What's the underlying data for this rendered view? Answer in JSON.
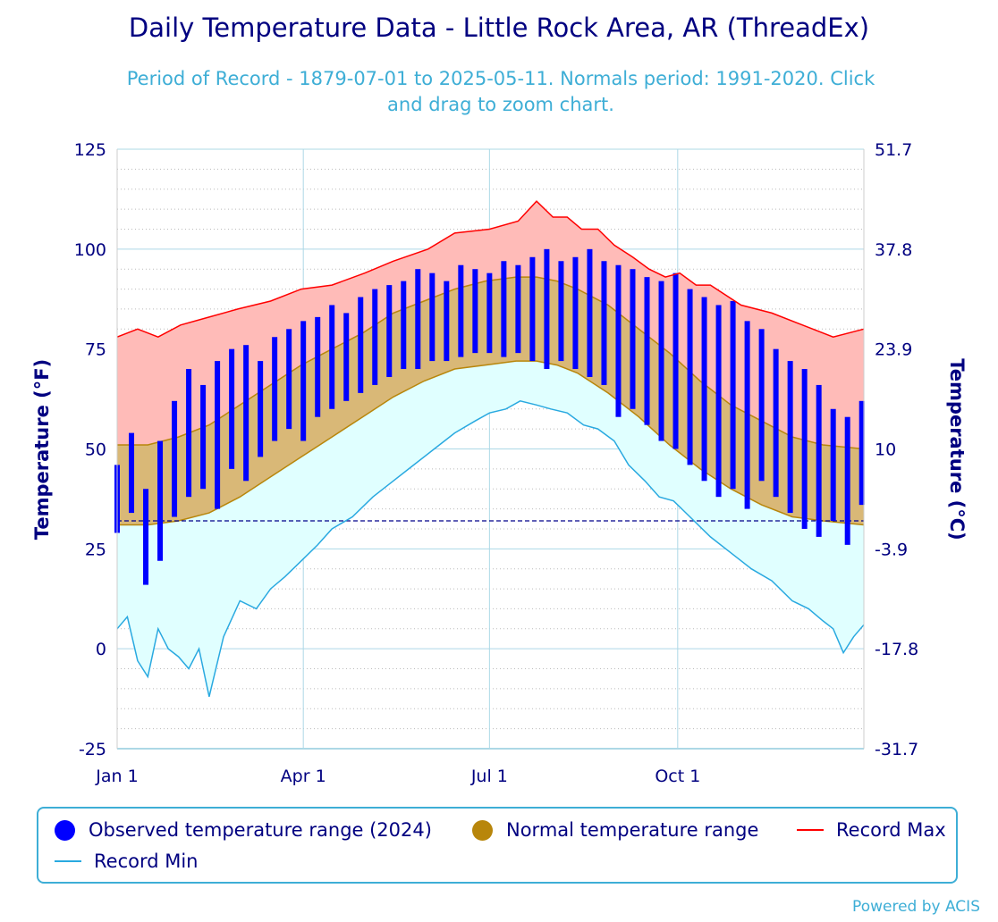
{
  "title": "Daily Temperature Data - Little Rock Area, AR (ThreadEx)",
  "subtitle_line1": "Period of Record - 1879-07-01 to 2025-05-11. Normals period: 1991-2020. Click",
  "subtitle_line2": "and drag to zoom chart.",
  "y_left_title": "Temperature (°F)",
  "y_right_title": "Temperature (°C)",
  "powered_by": "Powered by ACIS",
  "legend": {
    "observed": "Observed temperature range (2024)",
    "normal": "Normal temperature range",
    "record_max": "Record Max",
    "record_min": "Record Min"
  },
  "colors": {
    "observed": "#0000ff",
    "normal_fill": "#d9b877",
    "normal_line": "#b8860b",
    "normal_legend": "#b8860b",
    "record_max_line": "#ff0000",
    "record_max_fill": "#ffbbb8",
    "record_min_line": "#29a9e0",
    "record_min_fill": "#e0ffff",
    "axis_text": "#000080",
    "grid": "#add8e6",
    "freezing_line": "#00008b"
  },
  "chart_data": {
    "type": "area",
    "title": "Daily Temperature Data - Little Rock Area, AR (ThreadEx)",
    "xlabel": "",
    "ylabel": "Temperature (°F)",
    "ylabel_right": "Temperature (°C)",
    "ylim": [
      -25,
      125
    ],
    "y_ticks": [
      -25,
      0,
      25,
      50,
      75,
      100,
      125
    ],
    "y_right_ticks": [
      "-31.7",
      "-17.8",
      "-3.9",
      "10",
      "23.9",
      "37.8",
      "51.7"
    ],
    "x_ticks": [
      {
        "label": "Jan 1",
        "day": 0
      },
      {
        "label": "Apr 1",
        "day": 91
      },
      {
        "label": "Jul 1",
        "day": 182
      },
      {
        "label": "Oct 1",
        "day": 274
      }
    ],
    "x_range_days": [
      0,
      365
    ],
    "freezing_line_f": 32,
    "grid": true,
    "legend_position": "bottom",
    "record_max": {
      "days": [
        0,
        10,
        20,
        31,
        45,
        59,
        75,
        90,
        105,
        121,
        135,
        152,
        165,
        182,
        196,
        205,
        213,
        220,
        227,
        235,
        243,
        252,
        260,
        268,
        275,
        283,
        290,
        305,
        320,
        335,
        350,
        365
      ],
      "values": [
        78,
        80,
        78,
        81,
        83,
        85,
        87,
        90,
        91,
        94,
        97,
        100,
        104,
        105,
        107,
        112,
        108,
        108,
        105,
        105,
        101,
        98,
        95,
        93,
        94,
        91,
        91,
        86,
        84,
        81,
        78,
        80
      ]
    },
    "record_min": {
      "days": [
        0,
        5,
        10,
        15,
        20,
        25,
        30,
        35,
        40,
        45,
        52,
        60,
        68,
        75,
        82,
        90,
        98,
        105,
        115,
        125,
        135,
        145,
        155,
        165,
        175,
        182,
        190,
        197,
        205,
        212,
        220,
        228,
        235,
        243,
        250,
        258,
        265,
        272,
        280,
        290,
        300,
        310,
        320,
        330,
        338,
        345,
        350,
        355,
        360,
        365
      ],
      "values": [
        5,
        8,
        -3,
        -7,
        5,
        0,
        -2,
        -5,
        0,
        -12,
        3,
        12,
        10,
        15,
        18,
        22,
        26,
        30,
        33,
        38,
        42,
        46,
        50,
        54,
        57,
        59,
        60,
        62,
        61,
        60,
        59,
        56,
        55,
        52,
        46,
        42,
        38,
        37,
        33,
        28,
        24,
        20,
        17,
        12,
        10,
        7,
        5,
        -1,
        3,
        6
      ]
    },
    "normal_max": {
      "days": [
        0,
        15,
        30,
        45,
        60,
        75,
        90,
        105,
        120,
        135,
        150,
        165,
        180,
        195,
        205,
        215,
        225,
        240,
        255,
        270,
        285,
        300,
        315,
        330,
        345,
        365
      ],
      "values": [
        51,
        51,
        53,
        56,
        61,
        66,
        71,
        75,
        79,
        84,
        87,
        90,
        92,
        93,
        93,
        92,
        90,
        86,
        80,
        74,
        67,
        61,
        57,
        53,
        51,
        50
      ]
    },
    "normal_min": {
      "days": [
        0,
        15,
        30,
        45,
        60,
        75,
        90,
        105,
        120,
        135,
        150,
        165,
        180,
        195,
        205,
        215,
        225,
        240,
        255,
        270,
        285,
        300,
        315,
        330,
        345,
        365
      ],
      "values": [
        31,
        31,
        32,
        34,
        38,
        43,
        48,
        53,
        58,
        63,
        67,
        70,
        71,
        72,
        72,
        71,
        69,
        64,
        58,
        51,
        45,
        40,
        36,
        33,
        32,
        31
      ]
    },
    "observed_2024": {
      "days": [
        0,
        7,
        14,
        21,
        28,
        35,
        42,
        49,
        56,
        63,
        70,
        77,
        84,
        91,
        98,
        105,
        112,
        119,
        126,
        133,
        140,
        147,
        154,
        161,
        168,
        175,
        182,
        189,
        196,
        203,
        210,
        217,
        224,
        231,
        238,
        245,
        252,
        259,
        266,
        273,
        280,
        287,
        294,
        301,
        308,
        315,
        322,
        329,
        336,
        343,
        350,
        357,
        364
      ],
      "high": [
        46,
        54,
        40,
        52,
        62,
        70,
        66,
        72,
        75,
        76,
        72,
        78,
        80,
        82,
        83,
        86,
        84,
        88,
        90,
        91,
        92,
        95,
        94,
        92,
        96,
        95,
        94,
        97,
        96,
        98,
        100,
        97,
        98,
        100,
        97,
        96,
        95,
        93,
        92,
        94,
        90,
        88,
        86,
        87,
        82,
        80,
        75,
        72,
        70,
        66,
        60,
        58,
        62
      ],
      "low": [
        29,
        34,
        16,
        22,
        33,
        38,
        40,
        35,
        45,
        42,
        48,
        52,
        55,
        52,
        58,
        60,
        62,
        64,
        66,
        68,
        70,
        70,
        72,
        72,
        73,
        74,
        74,
        73,
        74,
        72,
        70,
        72,
        70,
        68,
        66,
        58,
        60,
        56,
        52,
        50,
        46,
        42,
        38,
        40,
        35,
        42,
        38,
        34,
        30,
        28,
        32,
        26,
        36
      ]
    }
  }
}
